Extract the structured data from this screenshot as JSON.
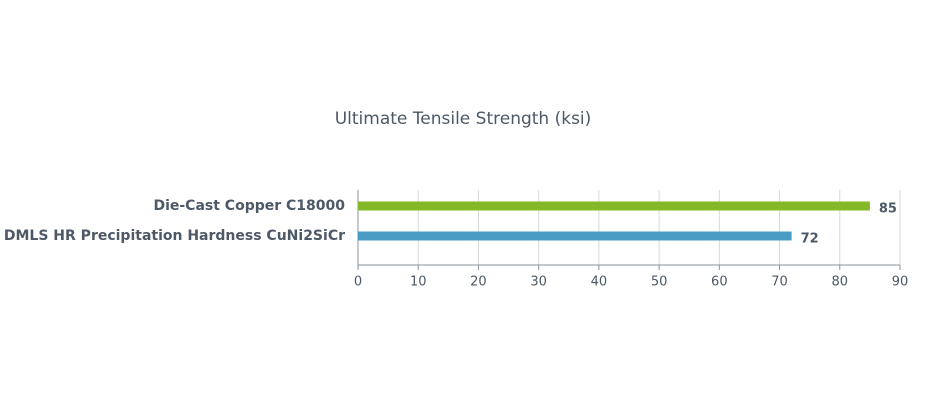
{
  "chart_data": {
    "type": "hbar",
    "title": "Ultimate Tensile Strength (ksi)",
    "categories": [
      "Die-Cast Copper C18000",
      "DMLS HR Precipitation Hardness CuNi2SiCr"
    ],
    "values": [
      85,
      72
    ],
    "colors": [
      "#84b826",
      "#4a9cc4"
    ],
    "xlim": [
      0,
      90
    ],
    "xticks": [
      0,
      10,
      20,
      30,
      40,
      50,
      60,
      70,
      80,
      90
    ],
    "grid": true
  }
}
